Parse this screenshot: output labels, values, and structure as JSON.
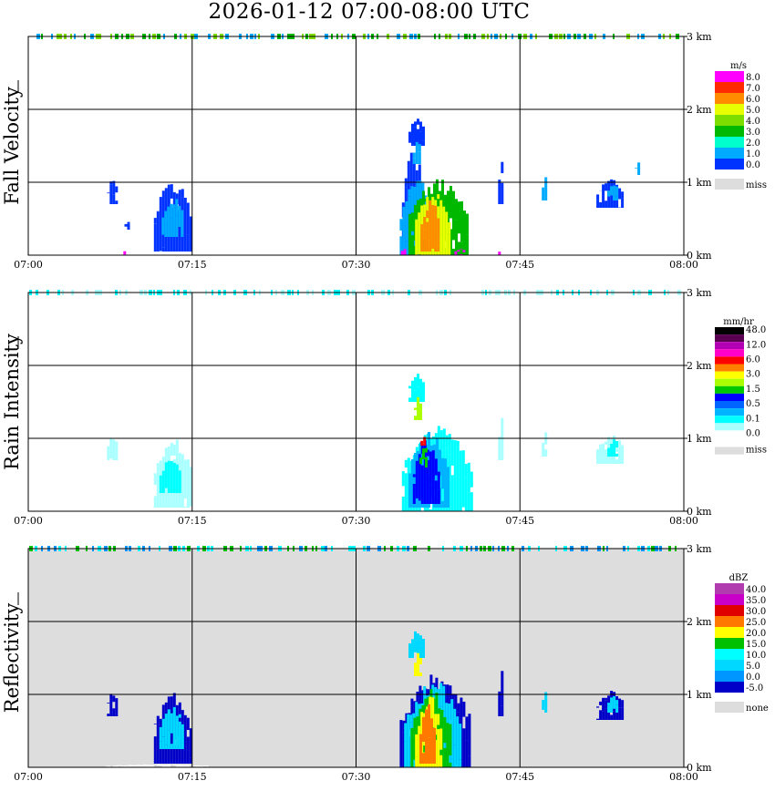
{
  "title": "2026-01-12   07:00-08:00 UTC",
  "chart_data": [
    {
      "type": "heatmap",
      "ylabel": "Fall Velocity",
      "legend_unit": "m/s",
      "x_ticks": [
        "07:00",
        "07:15",
        "07:30",
        "07:45",
        "08:00"
      ],
      "y_ticks": [
        "0 km",
        "1 km",
        "2 km",
        "3 km"
      ],
      "ylim_km": [
        0,
        3
      ],
      "xlim": [
        "07:00",
        "08:00"
      ],
      "grid": true,
      "background": "#ffffff",
      "legend": [
        {
          "label": "8.0",
          "color": "#ff00ff"
        },
        {
          "label": "7.0",
          "color": "#ff2a00"
        },
        {
          "label": "6.0",
          "color": "#ff8c00"
        },
        {
          "label": "5.0",
          "color": "#e8ff00"
        },
        {
          "label": "4.0",
          "color": "#7ddc00"
        },
        {
          "label": "3.0",
          "color": "#00b800"
        },
        {
          "label": "2.0",
          "color": "#00ffcc"
        },
        {
          "label": "1.0",
          "color": "#00aaff"
        },
        {
          "label": "0.0",
          "color": "#0033ff"
        },
        {
          "label": "miss",
          "color": "#dddddd"
        }
      ],
      "echoes": [
        {
          "t": [
            7.2,
            8.1
          ],
          "h": [
            0.7,
            1.05
          ],
          "color": "#0033ff"
        },
        {
          "t": [
            8.8,
            9.1
          ],
          "h": [
            0.35,
            0.5
          ],
          "color": "#0033ff"
        },
        {
          "t": [
            11.5,
            14.8
          ],
          "h": [
            0.05,
            1.05
          ],
          "color": "#0033ff"
        },
        {
          "t": [
            12.2,
            14.2
          ],
          "h": [
            0.25,
            0.8
          ],
          "color": "#00aaff"
        },
        {
          "t": [
            34.2,
            36.2
          ],
          "h": [
            0.0,
            1.5
          ],
          "color": "#0033ff"
        },
        {
          "t": [
            34.0,
            37.0
          ],
          "h": [
            0.0,
            1.1
          ],
          "color": "#00aaff"
        },
        {
          "t": [
            34.8,
            40.2
          ],
          "h": [
            0.0,
            1.05
          ],
          "color": "#00b800"
        },
        {
          "t": [
            35.4,
            38.5
          ],
          "h": [
            0.0,
            0.9
          ],
          "color": "#e8ff00"
        },
        {
          "t": [
            35.9,
            37.6
          ],
          "h": [
            0.05,
            0.8
          ],
          "color": "#ff8c00"
        },
        {
          "t": [
            34.8,
            36.3
          ],
          "h": [
            1.5,
            1.9
          ],
          "color": "#0033ff"
        },
        {
          "t": [
            35.2,
            35.9
          ],
          "h": [
            1.25,
            1.6
          ],
          "color": "#00aaff"
        },
        {
          "t": [
            43.0,
            43.4
          ],
          "h": [
            0.7,
            1.4
          ],
          "color": "#0033ff"
        },
        {
          "t": [
            47.0,
            47.5
          ],
          "h": [
            0.75,
            1.1
          ],
          "color": "#00aaff"
        },
        {
          "t": [
            52.0,
            54.5
          ],
          "h": [
            0.65,
            1.05
          ],
          "color": "#0033ff"
        },
        {
          "t": [
            53.0,
            54.0
          ],
          "h": [
            0.75,
            1.0
          ],
          "color": "#00aaff"
        },
        {
          "t": [
            55.5,
            55.9
          ],
          "h": [
            1.1,
            1.3
          ],
          "color": "#00aaff"
        },
        {
          "t": [
            8.7,
            8.9
          ],
          "h": [
            0.0,
            0.12
          ],
          "color": "#ff00ff"
        },
        {
          "t": [
            34.1,
            34.4
          ],
          "h": [
            0.0,
            0.12
          ],
          "color": "#ff00ff"
        },
        {
          "t": [
            39.0,
            40.0
          ],
          "h": [
            0.0,
            0.1
          ],
          "color": "#ff00ff"
        },
        {
          "t": [
            43.0,
            43.2
          ],
          "h": [
            0.0,
            0.1
          ],
          "color": "#ff00ff"
        }
      ],
      "top_band": {
        "height_km": 3.0,
        "colors": [
          "#00b800",
          "#7ddc00",
          "#00aaff"
        ]
      }
    },
    {
      "type": "heatmap",
      "ylabel": "Rain Intensity",
      "legend_unit": "mm/hr",
      "x_ticks": [
        "07:00",
        "07:15",
        "07:30",
        "07:45",
        "08:00"
      ],
      "y_ticks": [
        "0 km",
        "1 km",
        "2 km",
        "3 km"
      ],
      "ylim_km": [
        0,
        3
      ],
      "xlim": [
        "07:00",
        "08:00"
      ],
      "grid": true,
      "background": "#ffffff",
      "legend": [
        {
          "label": "48.0",
          "color": "#000000"
        },
        {
          "label": "",
          "color": "#5a0050"
        },
        {
          "label": "12.0",
          "color": "#b400b4"
        },
        {
          "label": "",
          "color": "#ff00c8"
        },
        {
          "label": "6.0",
          "color": "#ff0000"
        },
        {
          "label": "",
          "color": "#ff8000"
        },
        {
          "label": "3.0",
          "color": "#ffff00"
        },
        {
          "label": "",
          "color": "#aaff00"
        },
        {
          "label": "1.5",
          "color": "#00c800"
        },
        {
          "label": "",
          "color": "#0000ff"
        },
        {
          "label": "0.5",
          "color": "#0064ff"
        },
        {
          "label": "",
          "color": "#00b4ff"
        },
        {
          "label": "0.1",
          "color": "#00ffff"
        },
        {
          "label": "",
          "color": "#aaffff"
        },
        {
          "label": "0.0",
          "color": "#ffffff"
        },
        {
          "label": "miss",
          "color": "#dddddd"
        }
      ],
      "echoes": [
        {
          "t": [
            7.2,
            8.1
          ],
          "h": [
            0.7,
            1.05
          ],
          "color": "#aaffff"
        },
        {
          "t": [
            11.5,
            14.8
          ],
          "h": [
            0.05,
            1.05
          ],
          "color": "#aaffff"
        },
        {
          "t": [
            12.0,
            14.0
          ],
          "h": [
            0.25,
            0.75
          ],
          "color": "#00ffff"
        },
        {
          "t": [
            34.2,
            40.5
          ],
          "h": [
            0.0,
            1.2
          ],
          "color": "#00ffff"
        },
        {
          "t": [
            34.8,
            38.5
          ],
          "h": [
            0.05,
            1.1
          ],
          "color": "#00b4ff"
        },
        {
          "t": [
            35.2,
            37.5
          ],
          "h": [
            0.1,
            1.0
          ],
          "color": "#0000ff"
        },
        {
          "t": [
            35.8,
            36.5
          ],
          "h": [
            0.6,
            0.9
          ],
          "color": "#00c800"
        },
        {
          "t": [
            35.9,
            36.3
          ],
          "h": [
            0.9,
            1.05
          ],
          "color": "#ff0000"
        },
        {
          "t": [
            34.8,
            36.3
          ],
          "h": [
            1.5,
            1.9
          ],
          "color": "#00ffff"
        },
        {
          "t": [
            35.3,
            35.9
          ],
          "h": [
            1.25,
            1.6
          ],
          "color": "#aaff00"
        },
        {
          "t": [
            43.0,
            43.4
          ],
          "h": [
            0.7,
            1.4
          ],
          "color": "#aaffff"
        },
        {
          "t": [
            47.0,
            47.5
          ],
          "h": [
            0.75,
            1.1
          ],
          "color": "#aaffff"
        },
        {
          "t": [
            52.0,
            54.5
          ],
          "h": [
            0.65,
            1.05
          ],
          "color": "#aaffff"
        },
        {
          "t": [
            53.0,
            54.0
          ],
          "h": [
            0.75,
            1.0
          ],
          "color": "#00ffff"
        }
      ],
      "top_band": {
        "height_km": 3.0,
        "colors": [
          "#00ffff",
          "#aaffff"
        ]
      }
    },
    {
      "type": "heatmap",
      "ylabel": "Reflectivity",
      "legend_unit": "dBZ",
      "x_ticks": [
        "07:00",
        "07:15",
        "07:30",
        "07:45",
        "08:00"
      ],
      "y_ticks": [
        "0 km",
        "1 km",
        "2 km",
        "3 km"
      ],
      "ylim_km": [
        0,
        3
      ],
      "xlim": [
        "07:00",
        "08:00"
      ],
      "grid": true,
      "background": "#dddddd",
      "legend": [
        {
          "label": "40.0",
          "color": "#b03cb0"
        },
        {
          "label": "35.0",
          "color": "#c800c8"
        },
        {
          "label": "30.0",
          "color": "#e00000"
        },
        {
          "label": "25.0",
          "color": "#ff7800"
        },
        {
          "label": "20.0",
          "color": "#ffff00"
        },
        {
          "label": "15.0",
          "color": "#00c000"
        },
        {
          "label": "10.0",
          "color": "#00ffff"
        },
        {
          "label": "5.0",
          "color": "#00d8ff"
        },
        {
          "label": "0.0",
          "color": "#0096ff"
        },
        {
          "label": "-5.0",
          "color": "#0000c8"
        },
        {
          "label": "none",
          "color": "#dddddd"
        }
      ],
      "echoes": [
        {
          "t": [
            7.2,
            8.1
          ],
          "h": [
            0.7,
            1.05
          ],
          "color": "#0000c8"
        },
        {
          "t": [
            11.5,
            14.8
          ],
          "h": [
            0.05,
            1.05
          ],
          "color": "#0000c8"
        },
        {
          "t": [
            12.0,
            14.2
          ],
          "h": [
            0.25,
            0.85
          ],
          "color": "#00d8ff"
        },
        {
          "t": [
            34.0,
            40.5
          ],
          "h": [
            0.0,
            1.3
          ],
          "color": "#0000c8"
        },
        {
          "t": [
            34.4,
            39.6
          ],
          "h": [
            0.0,
            1.2
          ],
          "color": "#00d8ff"
        },
        {
          "t": [
            35.0,
            38.6
          ],
          "h": [
            0.0,
            1.1
          ],
          "color": "#00c000"
        },
        {
          "t": [
            35.4,
            37.8
          ],
          "h": [
            0.0,
            1.0
          ],
          "color": "#ffff00"
        },
        {
          "t": [
            35.8,
            37.1
          ],
          "h": [
            0.05,
            0.9
          ],
          "color": "#ff7800"
        },
        {
          "t": [
            34.8,
            36.3
          ],
          "h": [
            1.5,
            1.9
          ],
          "color": "#00d8ff"
        },
        {
          "t": [
            35.3,
            35.9
          ],
          "h": [
            1.25,
            1.6
          ],
          "color": "#ffff00"
        },
        {
          "t": [
            43.0,
            43.4
          ],
          "h": [
            0.7,
            1.4
          ],
          "color": "#0000c8"
        },
        {
          "t": [
            47.0,
            47.5
          ],
          "h": [
            0.75,
            1.1
          ],
          "color": "#00d8ff"
        },
        {
          "t": [
            52.0,
            54.5
          ],
          "h": [
            0.65,
            1.05
          ],
          "color": "#0000c8"
        },
        {
          "t": [
            53.0,
            54.0
          ],
          "h": [
            0.75,
            1.0
          ],
          "color": "#00d8ff"
        },
        {
          "t": [
            7.0,
            16.5
          ],
          "h": [
            0.0,
            0.04
          ],
          "color": "#ffffff"
        }
      ],
      "top_band": {
        "height_km": 3.0,
        "colors": [
          "#00c000",
          "#00ffff",
          "#0096ff"
        ]
      }
    }
  ]
}
